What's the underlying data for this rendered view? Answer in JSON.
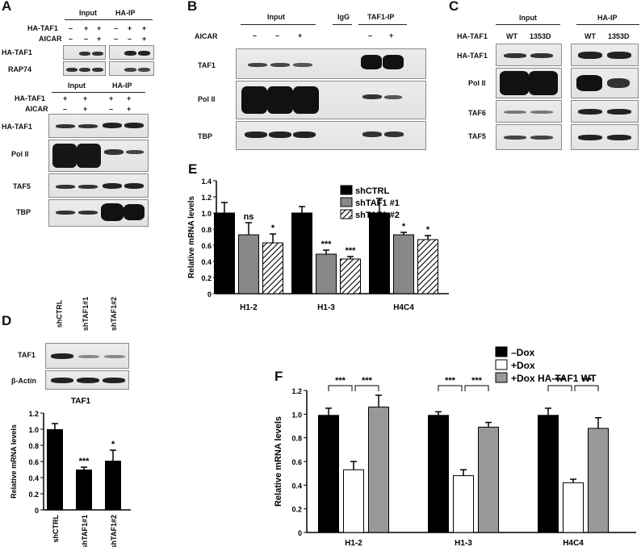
{
  "panels": {
    "A": {
      "letter": "A",
      "top": {
        "groups": [
          "Input",
          "HA-IP"
        ],
        "rows": [
          {
            "label": "HA-TAF1",
            "marks": [
              "–",
              "+",
              "+",
              "–",
              "+",
              "+"
            ]
          },
          {
            "label": "AICAR",
            "marks": [
              "–",
              "–",
              "+",
              "–",
              "–",
              "+"
            ]
          }
        ],
        "blots": [
          "HA-TAF1",
          "RAP74"
        ]
      },
      "bottom": {
        "groups": [
          "Input",
          "HA-IP"
        ],
        "rows": [
          {
            "label": "HA-TAF1",
            "marks": [
              "+",
              "+",
              "+",
              "+"
            ]
          },
          {
            "label": "AICAR",
            "marks": [
              "–",
              "+",
              "–",
              "+"
            ]
          }
        ],
        "blots": [
          "HA-TAF1",
          "Pol II",
          "TAF5",
          "TBP"
        ]
      }
    },
    "B": {
      "letter": "B",
      "groups": [
        "Input",
        "IgG",
        "TAF1-IP"
      ],
      "row_label": "AICAR",
      "marks": [
        "–",
        "–",
        "+",
        "–",
        "+"
      ],
      "blots": [
        "TAF1",
        "Pol II",
        "TBP"
      ]
    },
    "C": {
      "letter": "C",
      "groups": [
        "Input",
        "HA-IP"
      ],
      "row_label": "HA-TAF1",
      "marks": [
        "WT",
        "1353D",
        "WT",
        "1353D"
      ],
      "blots": [
        "HA-TAF1",
        "Pol II",
        "TAF6",
        "TAF5"
      ]
    },
    "D": {
      "letter": "D",
      "lanes": [
        "shCTRL",
        "shTAF1#1",
        "shTAF1#2"
      ],
      "blots": [
        "TAF1",
        "β-Actin"
      ]
    },
    "E": {
      "letter": "E"
    },
    "F": {
      "letter": "F"
    }
  },
  "chart_data": [
    {
      "id": "D",
      "type": "bar",
      "title": "TAF1",
      "ylabel": "Relative mRNA levels",
      "categories": [
        "shCTRL",
        "shTAF1#1",
        "shTAF1#2"
      ],
      "values": [
        1.0,
        0.5,
        0.61
      ],
      "errors": [
        0.07,
        0.03,
        0.13
      ],
      "significance": [
        "",
        "***",
        "*"
      ],
      "ylim": [
        0,
        1.2
      ],
      "yticks": [
        "0",
        "0.2",
        "0.4",
        "0.6",
        "0.8",
        "1.0",
        "1.2"
      ],
      "colors": [
        "#000000"
      ]
    },
    {
      "id": "E",
      "type": "bar",
      "ylabel": "Relative mRNA levels",
      "categories": [
        "H1-2",
        "H1-3",
        "H4C4"
      ],
      "series": [
        {
          "name": "shCTRL",
          "values": [
            1.0,
            1.0,
            1.0
          ],
          "errors": [
            0.13,
            0.08,
            0.18
          ],
          "significance": [
            "",
            "",
            ""
          ],
          "color": "#000000",
          "pattern": "solid"
        },
        {
          "name": "shTAF1 #1",
          "values": [
            0.73,
            0.49,
            0.73
          ],
          "errors": [
            0.15,
            0.05,
            0.03
          ],
          "significance": [
            "ns",
            "***",
            "*"
          ],
          "color": "#888888",
          "pattern": "solid"
        },
        {
          "name": "shTAF1 #2",
          "values": [
            0.63,
            0.43,
            0.67
          ],
          "errors": [
            0.11,
            0.03,
            0.05
          ],
          "significance": [
            "*",
            "***",
            "*"
          ],
          "color": "#ffffff",
          "pattern": "hatch"
        }
      ],
      "ylim": [
        0,
        1.4
      ],
      "yticks": [
        "0",
        "0.2",
        "0.4",
        "0.6",
        "0.8",
        "1.0",
        "1.2",
        "1.4"
      ],
      "legend": "top-center"
    },
    {
      "id": "F",
      "type": "bar",
      "ylabel": "Relative mRNA levels",
      "categories": [
        "H1-2",
        "H1-3",
        "H4C4"
      ],
      "series": [
        {
          "name": "–Dox",
          "values": [
            0.99,
            0.99,
            0.99
          ],
          "errors": [
            0.06,
            0.03,
            0.06
          ],
          "color": "#000000"
        },
        {
          "name": "+Dox",
          "values": [
            0.53,
            0.48,
            0.42
          ],
          "errors": [
            0.07,
            0.05,
            0.03
          ],
          "color": "#ffffff"
        },
        {
          "name": "+Dox HA-TAF1 WT",
          "values": [
            1.06,
            0.89,
            0.88
          ],
          "errors": [
            0.1,
            0.04,
            0.09
          ],
          "color": "#999999"
        }
      ],
      "brackets": [
        "***",
        "***"
      ],
      "ylim": [
        0,
        1.2
      ],
      "yticks": [
        "0",
        "0.2",
        "0.4",
        "0.6",
        "0.8",
        "1.0",
        "1.2"
      ],
      "legend": "top-right"
    }
  ]
}
